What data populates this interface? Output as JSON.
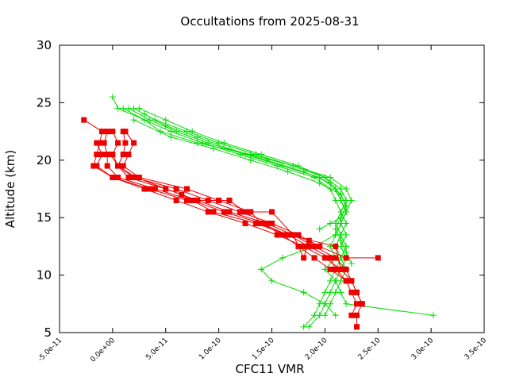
{
  "chart_data": {
    "type": "line",
    "title": "Occultations from 2025-08-31",
    "xlabel": "CFC11 VMR",
    "ylabel": "Altitude (km)",
    "xlim": [
      -5e-11,
      3.5e-10
    ],
    "ylim": [
      5,
      30
    ],
    "x_tick_labels": [
      "-5.0e-11",
      "0.0e+00",
      "5.0e-11",
      "1.0e-10",
      "1.5e-10",
      "2.0e-10",
      "2.5e-10",
      "3.0e-10",
      "3.5e-10"
    ],
    "x_ticks": [
      -5e-11,
      0,
      5e-11,
      1e-10,
      1.5e-10,
      2e-10,
      2.5e-10,
      3e-10,
      3.5e-10
    ],
    "y_ticks": [
      5,
      10,
      15,
      20,
      25,
      30
    ],
    "y_tick_labels": [
      "5",
      "10",
      "15",
      "20",
      "25",
      "30"
    ],
    "grid": false,
    "legend": "none",
    "colors": {
      "green": "#00dd00",
      "red": "#ee0000",
      "axis": "#000000"
    },
    "series": [
      {
        "color": "#00dd00",
        "marker": "plus",
        "points": [
          [
            0.0,
            25.5
          ],
          [
            5e-12,
            24.5
          ],
          [
            3e-11,
            23.5
          ],
          [
            4.5e-11,
            22.5
          ],
          [
            8e-11,
            21.5
          ],
          [
            1.3e-10,
            20.5
          ],
          [
            1.7e-10,
            19.5
          ],
          [
            2e-10,
            18.5
          ],
          [
            2.15e-10,
            17.5
          ],
          [
            2.2e-10,
            16.5
          ],
          [
            2.15e-10,
            15.5
          ],
          [
            2.1e-10,
            14.5
          ],
          [
            2.15e-10,
            13.5
          ],
          [
            2.1e-10,
            12.5
          ],
          [
            2.15e-10,
            11.5
          ],
          [
            2.1e-10,
            10.5
          ],
          [
            2.05e-10,
            9.5
          ],
          [
            2e-10,
            8.5
          ],
          [
            1.95e-10,
            7.5
          ],
          [
            1.9e-10,
            6.5
          ],
          [
            1.8e-10,
            5.5
          ]
        ]
      },
      {
        "color": "#00dd00",
        "marker": "plus",
        "points": [
          [
            1.5e-11,
            24.5
          ],
          [
            3.5e-11,
            23.5
          ],
          [
            6e-11,
            22.5
          ],
          [
            9e-11,
            21.5
          ],
          [
            1.25e-10,
            20.5
          ],
          [
            1.6e-10,
            19.5
          ],
          [
            1.95e-10,
            18.5
          ],
          [
            2.1e-10,
            17.5
          ],
          [
            2.15e-10,
            16.5
          ],
          [
            2.2e-10,
            15.5
          ],
          [
            2.15e-10,
            14.5
          ],
          [
            2.2e-10,
            13.5
          ],
          [
            2.15e-10,
            12.5
          ],
          [
            2.2e-10,
            11.5
          ],
          [
            2.15e-10,
            10.5
          ],
          [
            2.1e-10,
            9.5
          ],
          [
            2.05e-10,
            8.5
          ],
          [
            2e-10,
            7.5
          ],
          [
            1.95e-10,
            6.5
          ],
          [
            1.85e-10,
            5.5
          ]
        ]
      },
      {
        "color": "#00dd00",
        "marker": "plus",
        "points": [
          [
            2e-11,
            24.5
          ],
          [
            4e-11,
            23.5
          ],
          [
            7e-11,
            22.5
          ],
          [
            1e-10,
            21.5
          ],
          [
            1.35e-10,
            20.5
          ],
          [
            1.7e-10,
            19.5
          ],
          [
            2.05e-10,
            18.5
          ],
          [
            2.2e-10,
            17.5
          ],
          [
            2.25e-10,
            16.5
          ],
          [
            2.2e-10,
            15.5
          ],
          [
            2.15e-10,
            14.5
          ],
          [
            2.1e-10,
            13.5
          ],
          [
            2.05e-10,
            12.5
          ],
          [
            2.1e-10,
            11.5
          ],
          [
            2e-10,
            10.5
          ],
          [
            2.1e-10,
            9.5
          ],
          [
            2.15e-10,
            8.5
          ],
          [
            2.2e-10,
            7.5
          ],
          [
            3.02e-10,
            6.5
          ]
        ]
      },
      {
        "color": "#00dd00",
        "marker": "plus",
        "points": [
          [
            2.5e-11,
            24.5
          ],
          [
            5e-11,
            23.5
          ],
          [
            7.5e-11,
            22.5
          ],
          [
            1.05e-10,
            21.5
          ],
          [
            1.4e-10,
            20.5
          ],
          [
            1.75e-10,
            19.5
          ],
          [
            2e-10,
            18.5
          ],
          [
            2.1e-10,
            17.5
          ],
          [
            2.15e-10,
            16.5
          ],
          [
            2.2e-10,
            15.5
          ],
          [
            2.15e-10,
            14.5
          ],
          [
            2.1e-10,
            13.5
          ],
          [
            1.9e-10,
            12.5
          ],
          [
            1.6e-10,
            11.5
          ],
          [
            1.4e-10,
            10.5
          ],
          [
            1.5e-10,
            9.5
          ],
          [
            1.8e-10,
            8.5
          ],
          [
            2e-10,
            7.5
          ],
          [
            2.1e-10,
            6.5
          ]
        ]
      },
      {
        "color": "#00dd00",
        "marker": "plus",
        "points": [
          [
            1e-11,
            24.5
          ],
          [
            3e-11,
            23.5
          ],
          [
            5.5e-11,
            22.5
          ],
          [
            8.5e-11,
            21.5
          ],
          [
            1.2e-10,
            20.5
          ],
          [
            1.55e-10,
            19.5
          ],
          [
            1.9e-10,
            18.5
          ],
          [
            2.05e-10,
            17.5
          ],
          [
            2.1e-10,
            16.5
          ],
          [
            2.15e-10,
            15.5
          ],
          [
            2.2e-10,
            14.5
          ],
          [
            2.15e-10,
            13.5
          ],
          [
            2.2e-10,
            12.5
          ],
          [
            2.15e-10,
            11.5
          ],
          [
            2.2e-10,
            10.5
          ],
          [
            2.15e-10,
            9.5
          ],
          [
            2.1e-10,
            8.5
          ],
          [
            2.05e-10,
            7.5
          ],
          [
            2e-10,
            6.5
          ]
        ]
      },
      {
        "color": "#00dd00",
        "marker": "plus",
        "points": [
          [
            3e-11,
            24.0
          ],
          [
            5e-11,
            23.0
          ],
          [
            8e-11,
            22.0
          ],
          [
            1.1e-10,
            21.0
          ],
          [
            1.45e-10,
            20.0
          ],
          [
            1.8e-10,
            19.0
          ],
          [
            2.05e-10,
            18.0
          ],
          [
            2.15e-10,
            17.0
          ],
          [
            2.2e-10,
            16.0
          ],
          [
            2.15e-10,
            15.0
          ],
          [
            2.1e-10,
            14.0
          ],
          [
            2.15e-10,
            13.0
          ],
          [
            2.2e-10,
            12.0
          ],
          [
            2.25e-10,
            11.0
          ]
        ]
      },
      {
        "color": "#00dd00",
        "marker": "plus",
        "points": [
          [
            2e-11,
            23.5
          ],
          [
            5.5e-11,
            22.0
          ],
          [
            9.5e-11,
            21.0
          ],
          [
            1.3e-10,
            20.0
          ],
          [
            1.65e-10,
            19.0
          ],
          [
            1.95e-10,
            18.0
          ],
          [
            2.15e-10,
            17.0
          ],
          [
            2.2e-10,
            16.0
          ],
          [
            2.15e-10,
            15.0
          ],
          [
            2.05e-10,
            14.5
          ],
          [
            1.95e-10,
            14.0
          ]
        ]
      },
      {
        "color": "#ee0000",
        "marker": "square",
        "points": [
          [
            -2.7e-11,
            23.5
          ],
          [
            -1e-11,
            22.5
          ],
          [
            -1.2e-11,
            21.5
          ],
          [
            -1.5e-11,
            20.5
          ],
          [
            -1.8e-11,
            19.5
          ],
          [
            0.0,
            18.5
          ],
          [
            3e-11,
            17.5
          ],
          [
            6e-11,
            16.5
          ],
          [
            9e-11,
            15.5
          ],
          [
            1.25e-10,
            14.5
          ],
          [
            1.55e-10,
            13.5
          ],
          [
            1.8e-10,
            12.5
          ],
          [
            2e-10,
            11.5
          ],
          [
            2.15e-10,
            10.5
          ],
          [
            2.25e-10,
            9.5
          ],
          [
            2.3e-10,
            8.5
          ],
          [
            2.35e-10,
            7.5
          ],
          [
            2.3e-10,
            6.5
          ],
          [
            2.3e-10,
            5.5
          ]
        ]
      },
      {
        "color": "#ee0000",
        "marker": "square",
        "points": [
          [
            -5e-12,
            22.5
          ],
          [
            -8e-12,
            21.5
          ],
          [
            -5e-12,
            20.5
          ],
          [
            -5e-12,
            19.5
          ],
          [
            5e-12,
            18.5
          ],
          [
            4e-11,
            17.5
          ],
          [
            7.5e-11,
            16.5
          ],
          [
            1.05e-10,
            15.5
          ],
          [
            1.4e-10,
            14.5
          ],
          [
            1.65e-10,
            13.5
          ],
          [
            1.85e-10,
            12.5
          ],
          [
            2.05e-10,
            11.5
          ],
          [
            2.1e-10,
            10.5
          ],
          [
            2.2e-10,
            9.5
          ],
          [
            2.25e-10,
            8.5
          ],
          [
            2.3e-10,
            7.5
          ],
          [
            2.25e-10,
            6.5
          ]
        ]
      },
      {
        "color": "#ee0000",
        "marker": "square",
        "points": [
          [
            0.0,
            22.5
          ],
          [
            5e-12,
            21.5
          ],
          [
            0.0,
            20.5
          ],
          [
            5e-12,
            19.5
          ],
          [
            1.5e-11,
            18.5
          ],
          [
            5e-11,
            17.5
          ],
          [
            8e-11,
            16.5
          ],
          [
            1.1e-10,
            15.5
          ],
          [
            1.45e-10,
            14.5
          ],
          [
            1.7e-10,
            13.5
          ],
          [
            1.9e-10,
            12.5
          ],
          [
            2.1e-10,
            11.5
          ],
          [
            2.2e-10,
            10.5
          ],
          [
            2.25e-10,
            9.5
          ],
          [
            2.3e-10,
            8.5
          ],
          [
            2.35e-10,
            7.5
          ]
        ]
      },
      {
        "color": "#ee0000",
        "marker": "square",
        "points": [
          [
            1e-11,
            22.5
          ],
          [
            1.2e-11,
            21.5
          ],
          [
            1e-11,
            20.5
          ],
          [
            5e-12,
            19.5
          ],
          [
            2e-11,
            18.5
          ],
          [
            6e-11,
            17.5
          ],
          [
            9e-11,
            16.5
          ],
          [
            1.2e-10,
            15.5
          ],
          [
            1.5e-10,
            14.5
          ],
          [
            1.75e-10,
            13.5
          ],
          [
            1.95e-10,
            12.5
          ],
          [
            2.2e-10,
            11.5
          ],
          [
            2.5e-10,
            11.5
          ]
        ]
      },
      {
        "color": "#ee0000",
        "marker": "square",
        "points": [
          [
            1.2e-11,
            22.5
          ],
          [
            2e-11,
            21.5
          ],
          [
            1.5e-11,
            20.5
          ],
          [
            1e-11,
            19.5
          ],
          [
            2.5e-11,
            18.5
          ],
          [
            7e-11,
            17.5
          ],
          [
            1e-10,
            16.5
          ],
          [
            1.3e-10,
            15.5
          ],
          [
            1.4e-10,
            14.5
          ],
          [
            1.6e-10,
            13.5
          ],
          [
            1.75e-10,
            12.5
          ],
          [
            1.9e-10,
            11.5
          ],
          [
            2.05e-10,
            10.5
          ],
          [
            2.2e-10,
            9.5
          ]
        ]
      },
      {
        "color": "#ee0000",
        "marker": "square",
        "points": [
          [
            -1.5e-11,
            21.5
          ],
          [
            -1e-11,
            20.5
          ],
          [
            -1.5e-11,
            19.5
          ],
          [
            0.0,
            18.5
          ],
          [
            3.5e-11,
            17.5
          ],
          [
            7e-11,
            16.5
          ],
          [
            1.1e-10,
            16.5
          ],
          [
            1.25e-10,
            15.5
          ],
          [
            1.5e-10,
            15.5
          ],
          [
            1.7e-10,
            13.5
          ],
          [
            1.8e-10,
            11.5
          ],
          [
            1.85e-10,
            13.0
          ]
        ]
      },
      {
        "color": "#ee0000",
        "marker": "square",
        "points": [
          [
            -2e-12,
            20.5
          ],
          [
            5e-12,
            19.5
          ],
          [
            2.2e-11,
            18.5
          ],
          [
            6.5e-11,
            17.0
          ],
          [
            9.5e-11,
            15.5
          ],
          [
            1.35e-10,
            14.5
          ],
          [
            1.65e-10,
            13.5
          ],
          [
            2.1e-10,
            12.5
          ],
          [
            2.15e-10,
            10.5
          ]
        ]
      }
    ]
  }
}
